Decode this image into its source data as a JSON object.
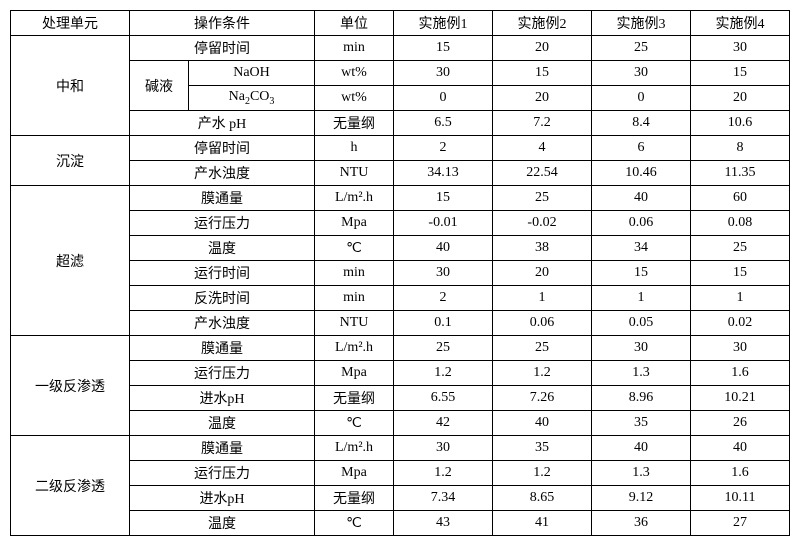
{
  "headers": {
    "unit": "处理单元",
    "cond": "操作条件",
    "danwei": "单位",
    "ex1": "实施例1",
    "ex2": "实施例2",
    "ex3": "实施例3",
    "ex4": "实施例4"
  },
  "sections": {
    "zhonghe": {
      "name": "中和",
      "r1": {
        "cond": "停留时间",
        "unit": "min",
        "v1": "15",
        "v2": "20",
        "v3": "25",
        "v4": "30"
      },
      "alkali": "碱液",
      "r2": {
        "cond": "NaOH",
        "unit": "wt%",
        "v1": "30",
        "v2": "15",
        "v3": "30",
        "v4": "15"
      },
      "r3": {
        "cond_html": "Na₂CO₃",
        "unit": "wt%",
        "v1": "0",
        "v2": "20",
        "v3": "0",
        "v4": "20"
      },
      "r4": {
        "cond": "产水 pH",
        "unit": "无量纲",
        "v1": "6.5",
        "v2": "7.2",
        "v3": "8.4",
        "v4": "10.6"
      }
    },
    "chendian": {
      "name": "沉淀",
      "r1": {
        "cond": "停留时间",
        "unit": "h",
        "v1": "2",
        "v2": "4",
        "v3": "6",
        "v4": "8"
      },
      "r2": {
        "cond": "产水浊度",
        "unit": "NTU",
        "v1": "34.13",
        "v2": "22.54",
        "v3": "10.46",
        "v4": "11.35"
      }
    },
    "chaolv": {
      "name": "超滤",
      "r1": {
        "cond": "膜通量",
        "unit": "L/m².h",
        "v1": "15",
        "v2": "25",
        "v3": "40",
        "v4": "60"
      },
      "r2": {
        "cond": "运行压力",
        "unit": "Mpa",
        "v1": "-0.01",
        "v2": "-0.02",
        "v3": "0.06",
        "v4": "0.08"
      },
      "r3": {
        "cond": "温度",
        "unit": "℃",
        "v1": "40",
        "v2": "38",
        "v3": "34",
        "v4": "25"
      },
      "r4": {
        "cond": "运行时间",
        "unit": "min",
        "v1": "30",
        "v2": "20",
        "v3": "15",
        "v4": "15"
      },
      "r5": {
        "cond": "反洗时间",
        "unit": "min",
        "v1": "2",
        "v2": "1",
        "v3": "1",
        "v4": "1"
      },
      "r6": {
        "cond": "产水浊度",
        "unit": "NTU",
        "v1": "0.1",
        "v2": "0.06",
        "v3": "0.05",
        "v4": "0.02"
      }
    },
    "ro1": {
      "name": "一级反渗透",
      "r1": {
        "cond": "膜通量",
        "unit": "L/m².h",
        "v1": "25",
        "v2": "25",
        "v3": "30",
        "v4": "30"
      },
      "r2": {
        "cond": "运行压力",
        "unit": "Mpa",
        "v1": "1.2",
        "v2": "1.2",
        "v3": "1.3",
        "v4": "1.6"
      },
      "r3": {
        "cond": "进水pH",
        "unit": "无量纲",
        "v1": "6.55",
        "v2": "7.26",
        "v3": "8.96",
        "v4": "10.21"
      },
      "r4": {
        "cond": "温度",
        "unit": "℃",
        "v1": "42",
        "v2": "40",
        "v3": "35",
        "v4": "26"
      }
    },
    "ro2": {
      "name": "二级反渗透",
      "r1": {
        "cond": "膜通量",
        "unit": "L/m².h",
        "v1": "30",
        "v2": "35",
        "v3": "40",
        "v4": "40"
      },
      "r2": {
        "cond": "运行压力",
        "unit": "Mpa",
        "v1": "1.2",
        "v2": "1.2",
        "v3": "1.3",
        "v4": "1.6"
      },
      "r3": {
        "cond": "进水pH",
        "unit": "无量纲",
        "v1": "7.34",
        "v2": "8.65",
        "v3": "9.12",
        "v4": "10.11"
      },
      "r4": {
        "cond": "温度",
        "unit": "℃",
        "v1": "43",
        "v2": "41",
        "v3": "36",
        "v4": "27"
      }
    }
  }
}
